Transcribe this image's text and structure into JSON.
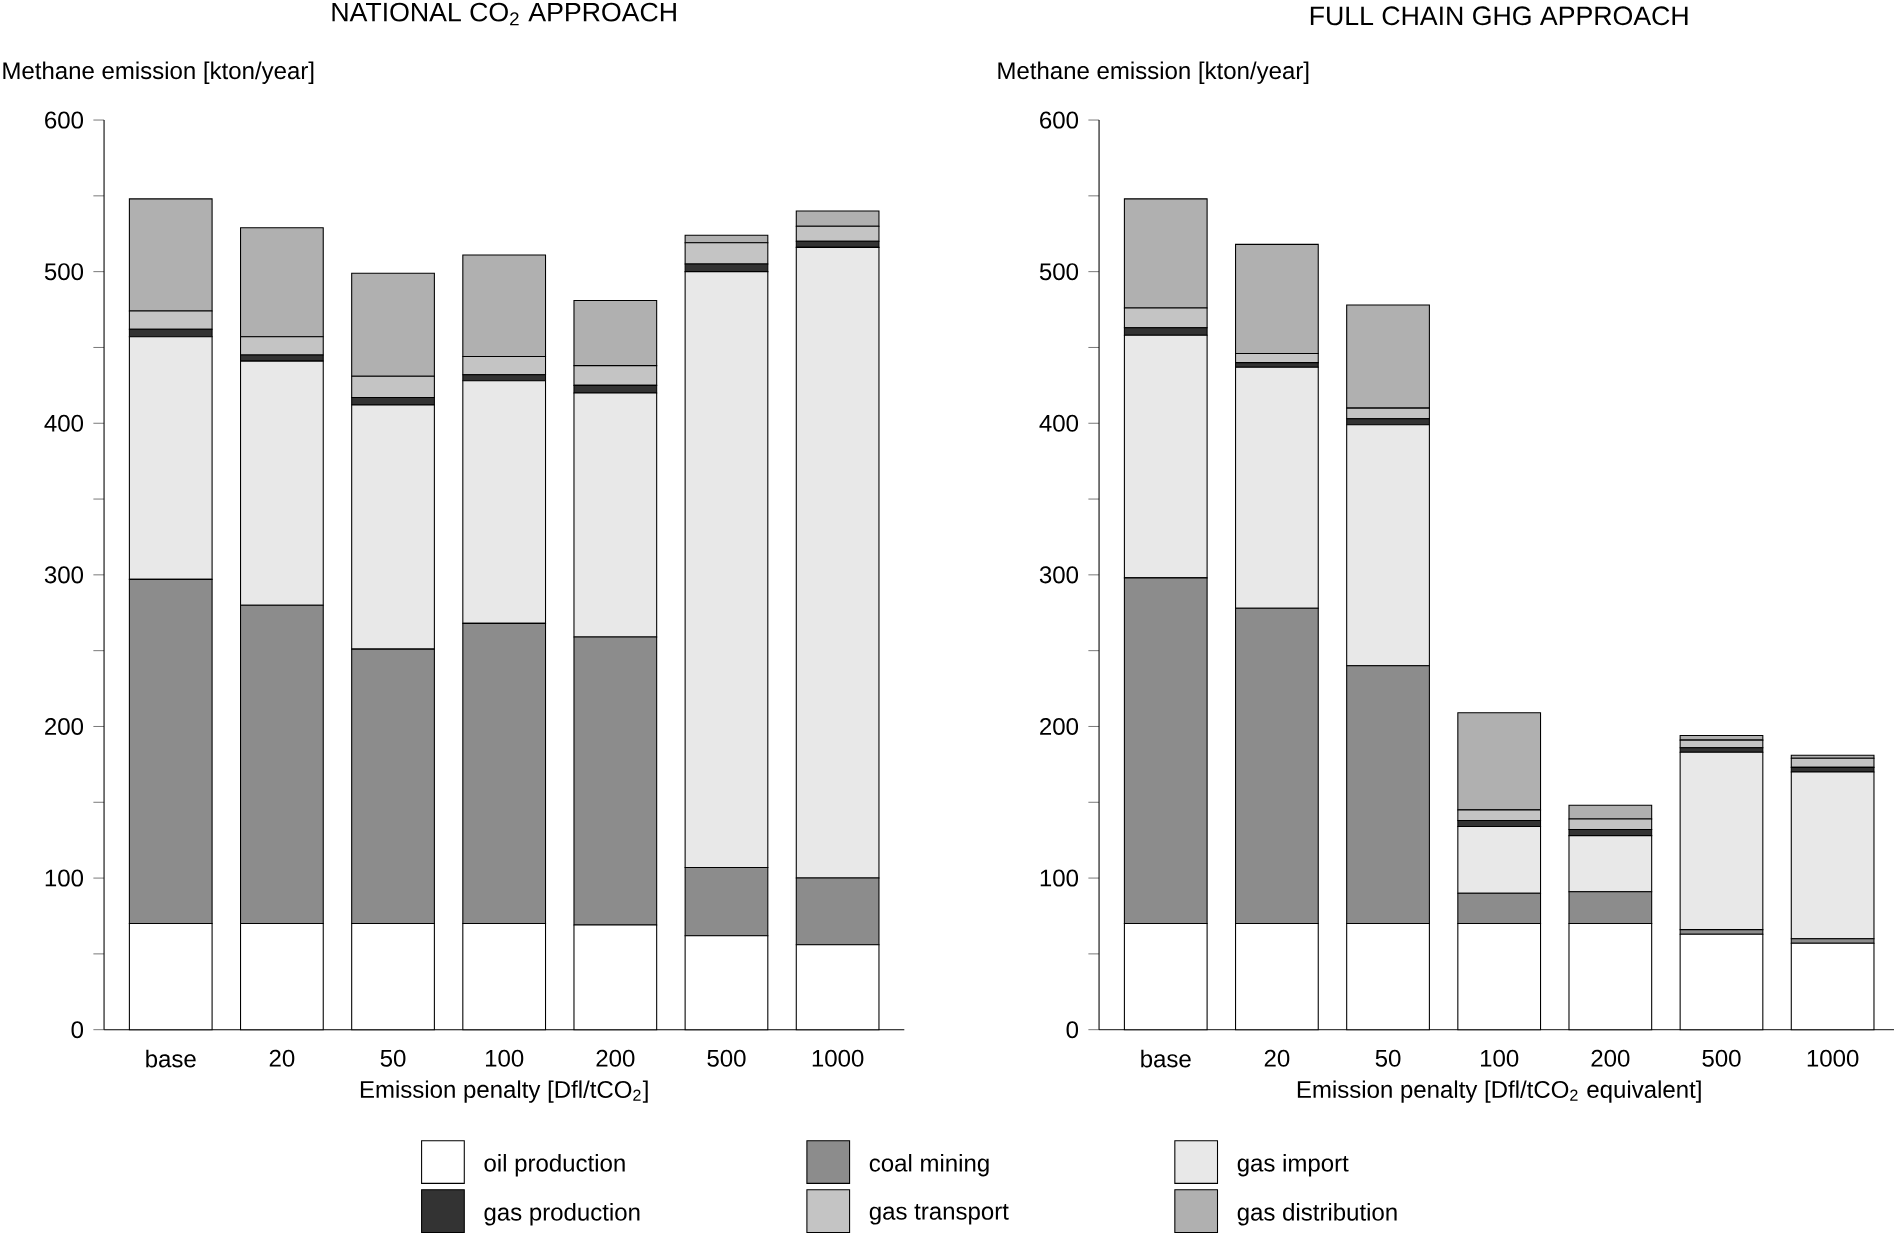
{
  "chart_data": [
    {
      "type": "bar",
      "stacked": true,
      "title": "NATIONAL CO$_{2}$ APPROACH",
      "ylabel": "Methane emission [kton/year]",
      "xlabel": "Emission penalty [Dfl/tCO$_{2}$]",
      "categories": [
        "base",
        "20",
        "50",
        "100",
        "200",
        "500",
        "1000"
      ],
      "ylim": [
        0,
        600
      ],
      "yticks": [
        0,
        {
          "value": 50,
          "label": null
        },
        100,
        {
          "value": 150,
          "label": null
        },
        200,
        {
          "value": 250,
          "label": null
        },
        300,
        {
          "value": 350,
          "label": null
        },
        400,
        {
          "value": 450,
          "label": null
        },
        500,
        {
          "value": 550,
          "label": null
        },
        600
      ],
      "legend": "bottom",
      "series": [
        {
          "name": "oil production",
          "color": "#ffffff",
          "values": [
            70,
            70,
            70,
            70,
            69,
            62,
            56
          ]
        },
        {
          "name": "coal mining",
          "color": "#8c8c8c",
          "values": [
            227,
            210,
            181,
            198,
            190,
            45,
            44
          ]
        },
        {
          "name": "gas import",
          "color": "#e8e8e8",
          "values": [
            160,
            161,
            161,
            160,
            161,
            393,
            416
          ]
        },
        {
          "name": "gas production",
          "color": "#333333",
          "values": [
            5,
            4,
            5,
            4,
            5,
            5,
            4
          ]
        },
        {
          "name": "gas transport",
          "color": "#c4c4c4",
          "values": [
            12,
            12,
            14,
            12,
            13,
            14,
            10
          ]
        },
        {
          "name": "gas distribution",
          "color": "#b0b0b0",
          "values": [
            74,
            72,
            68,
            67,
            43,
            5,
            10
          ]
        }
      ]
    },
    {
      "type": "bar",
      "stacked": true,
      "title": "FULL CHAIN GHG APPROACH",
      "ylabel": "Methane emission [kton/year]",
      "xlabel": "Emission penalty [Dfl/tCO$_{2}$ equivalent]",
      "categories": [
        "base",
        "20",
        "50",
        "100",
        "200",
        "500",
        "1000"
      ],
      "ylim": [
        0,
        600
      ],
      "yticks": [
        0,
        {
          "value": 50,
          "label": null
        },
        100,
        {
          "value": 150,
          "label": null
        },
        200,
        {
          "value": 250,
          "label": null
        },
        300,
        {
          "value": 350,
          "label": null
        },
        400,
        {
          "value": 450,
          "label": null
        },
        500,
        {
          "value": 550,
          "label": null
        },
        600
      ],
      "series": [
        {
          "color": "#ffffff",
          "values": [
            70,
            70,
            70,
            70,
            70,
            63,
            57
          ]
        },
        {
          "color": "#8c8c8c",
          "values": [
            228,
            208,
            170,
            20,
            21,
            3,
            3
          ]
        },
        {
          "color": "#e8e8e8",
          "values": [
            160,
            159,
            159,
            44,
            37,
            117,
            110
          ]
        },
        {
          "color": "#333333",
          "values": [
            5,
            3,
            4,
            4,
            4,
            3,
            3
          ]
        },
        {
          "color": "#c4c4c4",
          "values": [
            13,
            6,
            7,
            7,
            7,
            5,
            6
          ]
        },
        {
          "color": "#b0b0b0",
          "values": [
            72,
            72,
            68,
            64,
            9,
            3,
            2
          ]
        }
      ]
    }
  ]
}
